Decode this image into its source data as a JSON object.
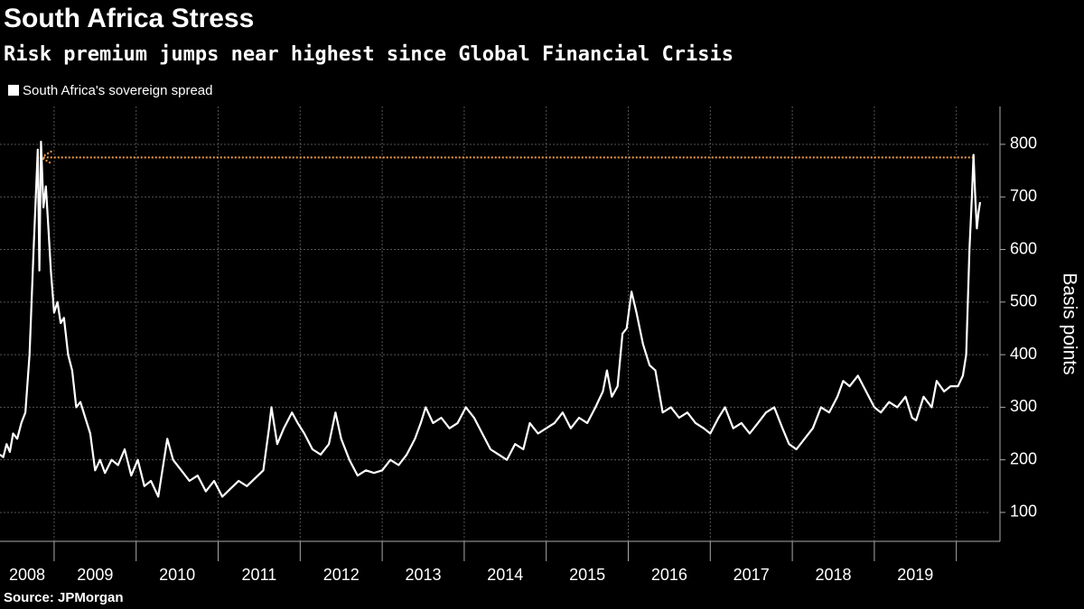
{
  "chart_data": {
    "type": "line",
    "title": "South Africa Stress",
    "subtitle": "Risk premium jumps near highest since Global Financial Crisis",
    "y_label": "Basis points",
    "source": "Source: JPMorgan",
    "xlim": [
      2008.34,
      2020.4
    ],
    "xticks": [
      {
        "value": 2008.5,
        "label": "2008"
      },
      {
        "value": 2009.5,
        "label": "2009"
      },
      {
        "value": 2010.5,
        "label": "2010"
      },
      {
        "value": 2011.5,
        "label": "2011"
      },
      {
        "value": 2012.5,
        "label": "2012"
      },
      {
        "value": 2013.5,
        "label": "2013"
      },
      {
        "value": 2014.5,
        "label": "2014"
      },
      {
        "value": 2015.5,
        "label": "2015"
      },
      {
        "value": 2016.5,
        "label": "2016"
      },
      {
        "value": 2017.5,
        "label": "2017"
      },
      {
        "value": 2018.5,
        "label": "2018"
      },
      {
        "value": 2019.5,
        "label": "2019"
      }
    ],
    "ylim": [
      45,
      872
    ],
    "yticks": [
      100,
      200,
      300,
      400,
      500,
      600,
      700,
      800
    ],
    "grid": true,
    "reference_line": {
      "value": 775,
      "x": [
        2020.21,
        2008.84
      ],
      "color": "#f5a04a"
    },
    "series": [
      {
        "name": "South Africa's sovereign spread",
        "color": "#ffffff",
        "x": [
          2008.34,
          2008.38,
          2008.42,
          2008.46,
          2008.5,
          2008.55,
          2008.6,
          2008.65,
          2008.7,
          2008.75,
          2008.8,
          2008.82,
          2008.84,
          2008.87,
          2008.9,
          2008.93,
          2008.96,
          2009.0,
          2009.04,
          2009.08,
          2009.12,
          2009.17,
          2009.22,
          2009.27,
          2009.32,
          2009.38,
          2009.44,
          2009.5,
          2009.56,
          2009.62,
          2009.7,
          2009.78,
          2009.86,
          2009.94,
          2010.02,
          2010.1,
          2010.18,
          2010.27,
          2010.38,
          2010.45,
          2010.55,
          2010.65,
          2010.75,
          2010.85,
          2010.95,
          2011.05,
          2011.15,
          2011.25,
          2011.35,
          2011.45,
          2011.55,
          2011.62,
          2011.65,
          2011.72,
          2011.8,
          2011.9,
          2011.97,
          2012.05,
          2012.15,
          2012.25,
          2012.35,
          2012.43,
          2012.5,
          2012.6,
          2012.7,
          2012.8,
          2012.9,
          2013.0,
          2013.1,
          2013.2,
          2013.3,
          2013.4,
          2013.47,
          2013.53,
          2013.62,
          2013.72,
          2013.82,
          2013.92,
          2014.02,
          2014.12,
          2014.22,
          2014.32,
          2014.42,
          2014.52,
          2014.62,
          2014.72,
          2014.8,
          2014.9,
          2015.0,
          2015.1,
          2015.2,
          2015.3,
          2015.4,
          2015.5,
          2015.6,
          2015.69,
          2015.74,
          2015.8,
          2015.87,
          2015.93,
          2015.98,
          2016.04,
          2016.1,
          2016.18,
          2016.26,
          2016.33,
          2016.42,
          2016.52,
          2016.62,
          2016.72,
          2016.82,
          2016.92,
          2017.0,
          2017.1,
          2017.18,
          2017.28,
          2017.38,
          2017.48,
          2017.58,
          2017.68,
          2017.78,
          2017.88,
          2017.96,
          2018.05,
          2018.15,
          2018.25,
          2018.35,
          2018.45,
          2018.55,
          2018.62,
          2018.7,
          2018.8,
          2018.9,
          2019.0,
          2019.08,
          2019.18,
          2019.28,
          2019.38,
          2019.46,
          2019.51,
          2019.6,
          2019.7,
          2019.76,
          2019.85,
          2019.93,
          2020.02,
          2020.08,
          2020.12,
          2020.16,
          2020.19,
          2020.21,
          2020.23,
          2020.25,
          2020.27,
          2020.29
        ],
        "values": [
          210,
          205,
          230,
          215,
          250,
          240,
          270,
          290,
          400,
          600,
          790,
          560,
          805,
          680,
          720,
          640,
          560,
          480,
          500,
          460,
          470,
          400,
          370,
          300,
          310,
          280,
          250,
          180,
          200,
          175,
          200,
          190,
          220,
          170,
          200,
          150,
          160,
          130,
          240,
          200,
          180,
          160,
          170,
          140,
          160,
          130,
          145,
          160,
          150,
          165,
          180,
          260,
          300,
          230,
          260,
          290,
          270,
          250,
          220,
          210,
          230,
          290,
          240,
          200,
          170,
          180,
          175,
          180,
          200,
          190,
          210,
          240,
          270,
          300,
          270,
          280,
          260,
          270,
          300,
          280,
          250,
          220,
          210,
          200,
          230,
          220,
          270,
          250,
          260,
          270,
          290,
          260,
          280,
          270,
          300,
          330,
          370,
          320,
          340,
          440,
          450,
          520,
          480,
          420,
          380,
          370,
          290,
          300,
          280,
          290,
          270,
          260,
          250,
          280,
          300,
          260,
          270,
          250,
          270,
          290,
          300,
          260,
          230,
          220,
          240,
          260,
          300,
          290,
          320,
          350,
          340,
          360,
          330,
          300,
          290,
          310,
          300,
          320,
          280,
          275,
          320,
          300,
          350,
          330,
          340,
          340,
          360,
          400,
          600,
          700,
          780,
          700,
          640,
          670,
          690
        ]
      }
    ]
  }
}
